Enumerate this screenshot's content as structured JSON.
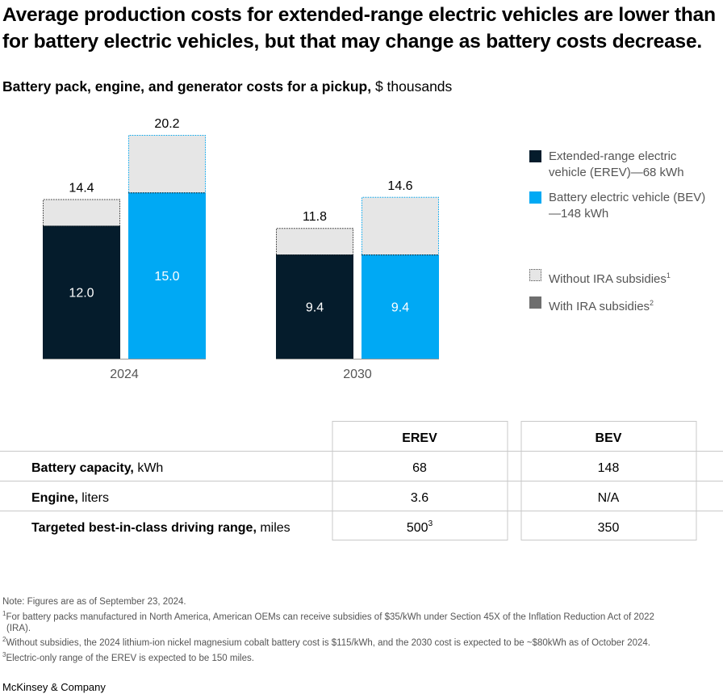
{
  "header": {
    "title": "Average production costs for extended-range electric vehicles are lower than for battery electric vehicles, but that may change as battery costs decrease.",
    "subtitle_bold": "Battery pack, engine, and generator costs for a pickup,",
    "subtitle_unit": " $ thousands"
  },
  "colors": {
    "erev": "#051c2c",
    "bev": "#00a9f4",
    "without_ira": "#e6e6e6",
    "with_ira": "#6e6e6e"
  },
  "chart_data": {
    "type": "bar",
    "stacked": true,
    "categories": [
      "2024",
      "2030"
    ],
    "series": [
      {
        "name": "Extended-range electric vehicle (EREV)—68 kWh",
        "key": "erev",
        "with_ira": [
          12.0,
          9.4
        ],
        "without_ira_total": [
          14.4,
          11.8
        ],
        "with_ira_labels": [
          "12.0",
          "9.4"
        ],
        "total_labels": [
          "14.4",
          "11.8"
        ]
      },
      {
        "name": "Battery electric vehicle (BEV)—148 kWh",
        "key": "bev",
        "with_ira": [
          15.0,
          9.4
        ],
        "without_ira_total": [
          20.2,
          14.6
        ],
        "with_ira_labels": [
          "15.0",
          "9.4"
        ],
        "total_labels": [
          "20.2",
          "14.6"
        ]
      }
    ],
    "ylim": [
      0,
      20.2
    ],
    "grid": false,
    "legend_position": "right"
  },
  "legend": {
    "erev": "Extended-range electric vehicle (EREV)—68 kWh",
    "bev": "Battery electric vehicle (BEV)—148 kWh",
    "without_ira": "Without IRA subsidies",
    "without_ira_sup": "1",
    "with_ira": "With IRA subsidies",
    "with_ira_sup": "2"
  },
  "table": {
    "columns": [
      "EREV",
      "BEV"
    ],
    "rows": [
      {
        "label_bold": "Battery capacity,",
        "label_unit": " kWh",
        "erev": "68",
        "erev_sup": "",
        "bev": "148"
      },
      {
        "label_bold": "Engine,",
        "label_unit": " liters",
        "erev": "3.6",
        "erev_sup": "",
        "bev": "N/A"
      },
      {
        "label_bold": "Targeted best-in-class driving range,",
        "label_unit": " miles",
        "erev": "500",
        "erev_sup": "3",
        "bev": "350"
      }
    ]
  },
  "footnotes": {
    "note": "Note: Figures are as of September 23, 2024.",
    "fn1_mark": "1",
    "fn1_a": "For battery packs manufactured in North America, American OEMs can receive subsidies of $35/kWh under Section 45X of the Inflation Reduction Act of 2022",
    "fn1_b": "(IRA).",
    "fn2_mark": "2",
    "fn2": "Without subsidies, the 2024 lithium-ion nickel magnesium cobalt battery cost is $115/kWh, and the 2030 cost is expected to be ~$80kWh as of October 2024.",
    "fn3_mark": "3",
    "fn3": "Electric-only range of the EREV is expected to be 150 miles."
  },
  "brand": "McKinsey & Company"
}
